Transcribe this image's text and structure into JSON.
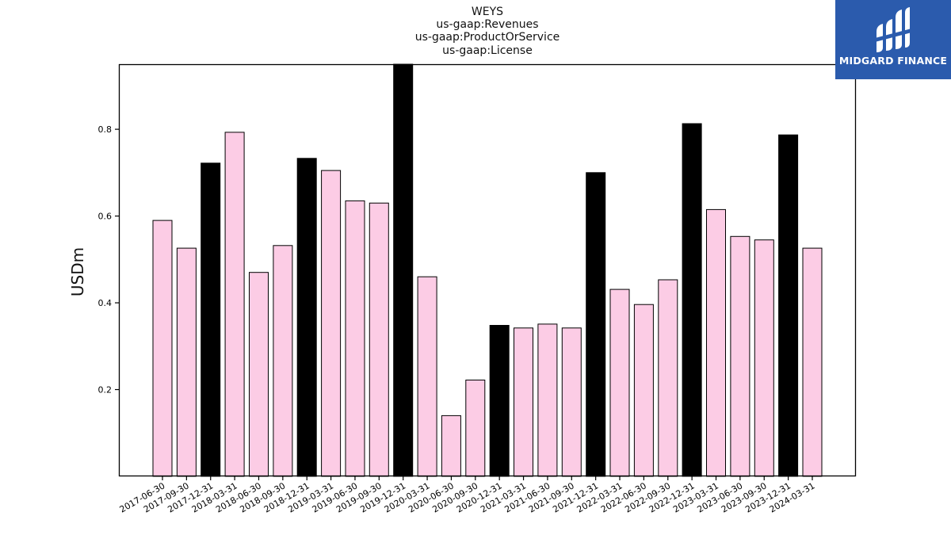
{
  "chart_data": {
    "type": "bar",
    "title_lines": [
      "WEYS",
      "us-gaap:Revenues",
      "us-gaap:ProductOrService",
      "us-gaap:License"
    ],
    "xlabel": "",
    "ylabel": "USDm",
    "ylim": [
      0,
      0.95
    ],
    "yticks": [
      0.2,
      0.4,
      0.6,
      0.8
    ],
    "ytick_labels": [
      "0.2",
      "0.4",
      "0.6",
      "0.8"
    ],
    "colors": {
      "quarter": "#fccce5",
      "year_end": "#000000",
      "edge": "#000000"
    },
    "categories": [
      "2017-06-30",
      "2017-09-30",
      "2017-12-31",
      "2018-03-31",
      "2018-06-30",
      "2018-09-30",
      "2018-12-31",
      "2019-03-31",
      "2019-06-30",
      "2019-09-30",
      "2019-12-31",
      "2020-03-31",
      "2020-06-30",
      "2020-09-30",
      "2020-12-31",
      "2021-03-31",
      "2021-06-30",
      "2021-09-30",
      "2021-12-31",
      "2022-03-31",
      "2022-06-30",
      "2022-09-30",
      "2022-12-31",
      "2023-03-31",
      "2023-06-30",
      "2023-09-30",
      "2023-12-31",
      "2024-03-31"
    ],
    "values": [
      0.59,
      0.526,
      0.722,
      0.793,
      0.47,
      0.532,
      0.733,
      0.705,
      0.635,
      0.63,
      0.95,
      0.46,
      0.14,
      0.222,
      0.348,
      0.342,
      0.351,
      0.342,
      0.7,
      0.431,
      0.396,
      0.453,
      0.813,
      0.615,
      0.553,
      0.545,
      0.787,
      0.526
    ],
    "highlight": [
      false,
      false,
      true,
      false,
      false,
      false,
      true,
      false,
      false,
      false,
      true,
      false,
      false,
      false,
      true,
      false,
      false,
      false,
      true,
      false,
      false,
      false,
      true,
      false,
      false,
      false,
      true,
      false
    ]
  },
  "logo": {
    "text": "MIDGARD FINANCE",
    "icon": "midgard-logo-icon",
    "background": "#2b5bad"
  }
}
